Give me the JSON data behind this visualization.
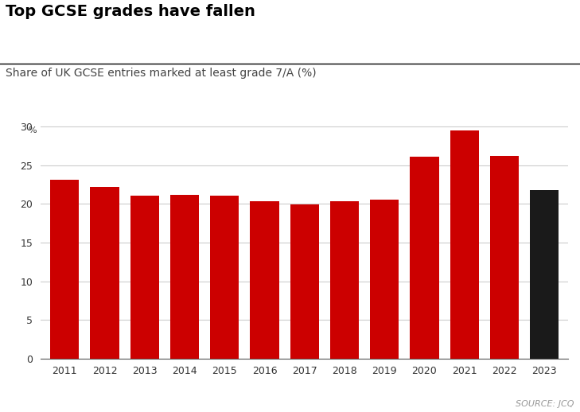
{
  "title": "Top GCSE grades have fallen",
  "subtitle": "Share of UK GCSE entries marked at least grade 7/A (%)",
  "source": "SOURCE: JCQ",
  "years": [
    2011,
    2012,
    2013,
    2014,
    2015,
    2016,
    2017,
    2018,
    2019,
    2020,
    2021,
    2022,
    2023
  ],
  "values": [
    23.1,
    22.2,
    21.1,
    21.2,
    21.1,
    20.4,
    19.9,
    20.3,
    20.6,
    26.1,
    29.5,
    26.2,
    21.8
  ],
  "bar_colors": [
    "#cc0000",
    "#cc0000",
    "#cc0000",
    "#cc0000",
    "#cc0000",
    "#cc0000",
    "#cc0000",
    "#cc0000",
    "#cc0000",
    "#cc0000",
    "#cc0000",
    "#cc0000",
    "#1a1a1a"
  ],
  "yticks": [
    0,
    5,
    10,
    15,
    20,
    25,
    30
  ],
  "ylim": [
    0,
    32
  ],
  "background_color": "#ffffff",
  "grid_color": "#cccccc",
  "title_fontsize": 14,
  "subtitle_fontsize": 10,
  "source_fontsize": 8,
  "tick_fontsize": 9
}
